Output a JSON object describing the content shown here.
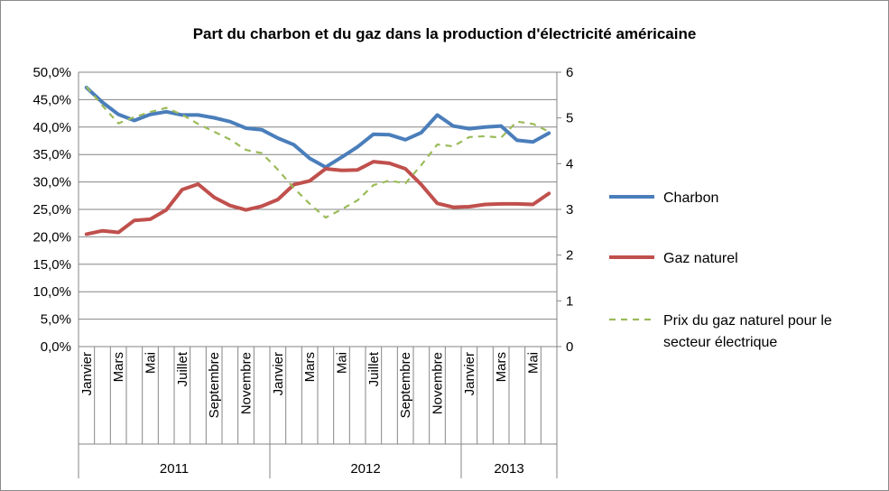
{
  "chart_data": {
    "type": "line",
    "title": "Part du charbon et du gaz dans la production d'électricité américaine",
    "x": [
      "2011-01",
      "2011-02",
      "2011-03",
      "2011-04",
      "2011-05",
      "2011-06",
      "2011-07",
      "2011-08",
      "2011-09",
      "2011-10",
      "2011-11",
      "2011-12",
      "2012-01",
      "2012-02",
      "2012-03",
      "2012-04",
      "2012-05",
      "2012-06",
      "2012-07",
      "2012-08",
      "2012-09",
      "2012-10",
      "2012-11",
      "2012-12",
      "2013-01",
      "2013-02",
      "2013-03",
      "2013-04",
      "2013-05",
      "2013-06"
    ],
    "x_tick_labels": [
      "Janvier",
      "",
      "Mars",
      "",
      "Mai",
      "",
      "Juillet",
      "",
      "Septembre",
      "",
      "Novembre",
      "",
      "Janvier",
      "",
      "Mars",
      "",
      "Mai",
      "",
      "Juillet",
      "",
      "Septembre",
      "",
      "Novembre",
      "",
      "Janvier",
      "",
      "Mars",
      "",
      "Mai",
      ""
    ],
    "year_groups": [
      {
        "label": "2011",
        "months": 12
      },
      {
        "label": "2012",
        "months": 12
      },
      {
        "label": "2013",
        "months": 6
      }
    ],
    "y_left": {
      "ylim": [
        0,
        50
      ],
      "ticks": [
        "0,0%",
        "5,0%",
        "10,0%",
        "15,0%",
        "20,0%",
        "25,0%",
        "30,0%",
        "35,0%",
        "40,0%",
        "45,0%",
        "50,0%"
      ]
    },
    "y_right": {
      "ylim": [
        0,
        6
      ],
      "ticks": [
        "0",
        "1",
        "2",
        "3",
        "4",
        "5",
        "6"
      ]
    },
    "grid": "horizontal",
    "legend_position": "right",
    "series": [
      {
        "name": "Charbon",
        "axis": "left",
        "color": "#4a7ebb",
        "style": "solid",
        "values": [
          47.2,
          44.5,
          42.3,
          41.2,
          42.3,
          42.8,
          42.2,
          42.2,
          41.7,
          41.0,
          39.8,
          39.5,
          38.0,
          36.8,
          34.3,
          32.7,
          34.5,
          36.4,
          38.7,
          38.6,
          37.7,
          39.0,
          42.2,
          40.2,
          39.7,
          40.0,
          40.2,
          37.6,
          37.3,
          38.9
        ]
      },
      {
        "name": "Gaz naturel",
        "axis": "left",
        "color": "#c0504d",
        "style": "solid",
        "values": [
          20.5,
          21.1,
          20.8,
          23.0,
          23.2,
          24.9,
          28.6,
          29.6,
          27.2,
          25.7,
          24.9,
          25.6,
          26.8,
          29.5,
          30.2,
          32.4,
          32.1,
          32.2,
          33.7,
          33.4,
          32.4,
          29.5,
          26.1,
          25.4,
          25.5,
          25.9,
          26.0,
          26.0,
          25.9,
          27.9
        ]
      },
      {
        "name": "Prix du gaz naturel pour le secteur électrique",
        "axis": "right",
        "color": "#9bbb59",
        "style": "dashed",
        "values": [
          5.68,
          5.27,
          4.88,
          5.02,
          5.13,
          5.22,
          5.07,
          4.87,
          4.7,
          4.53,
          4.3,
          4.23,
          3.87,
          3.47,
          3.12,
          2.82,
          3.0,
          3.2,
          3.53,
          3.63,
          3.57,
          3.97,
          4.42,
          4.38,
          4.58,
          4.6,
          4.57,
          4.92,
          4.87,
          4.7
        ]
      }
    ]
  }
}
